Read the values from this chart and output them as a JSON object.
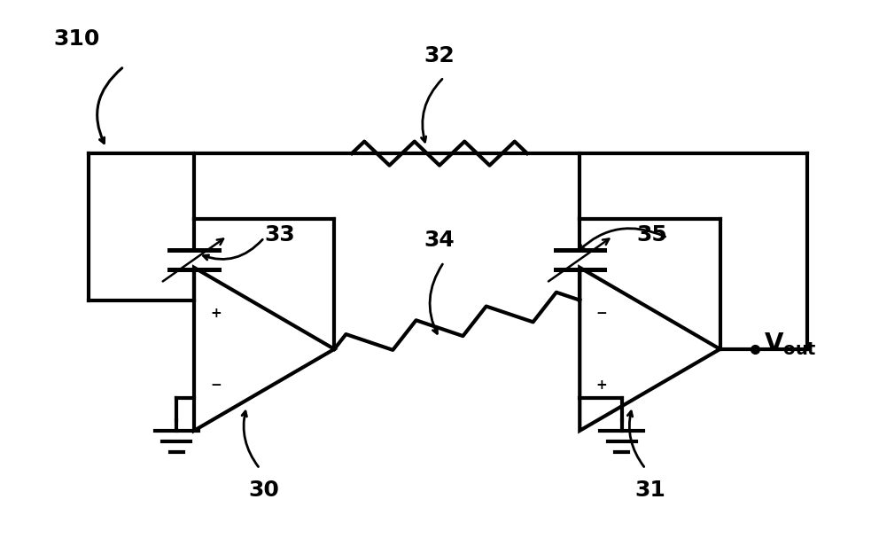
{
  "bg_color": "#ffffff",
  "line_color": "#000000",
  "lw": 3.0,
  "figsize": [
    9.92,
    6.16
  ],
  "dpi": 100
}
